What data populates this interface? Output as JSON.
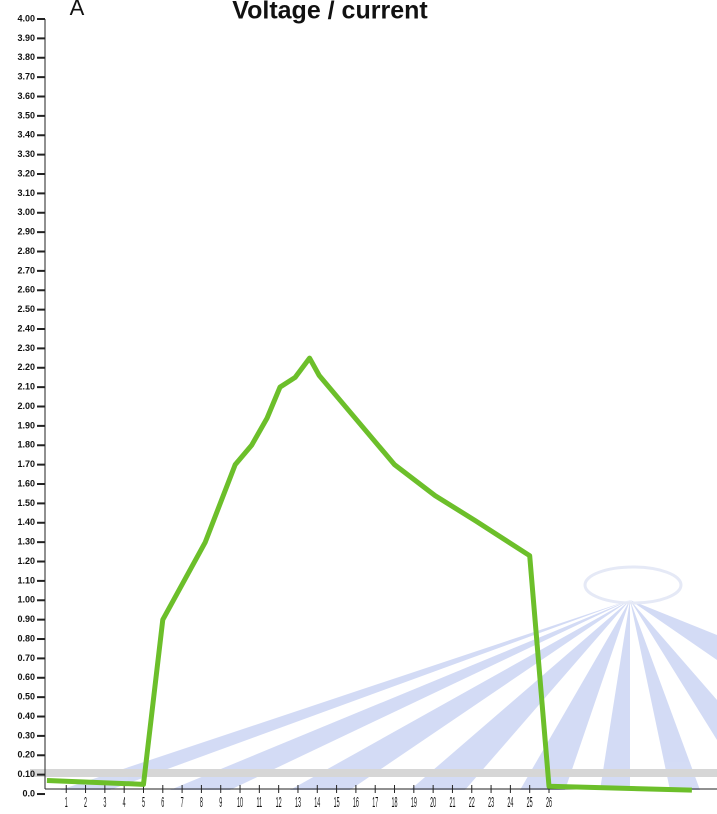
{
  "chart_data": {
    "type": "line",
    "title": "Voltage / current",
    "y_label": "A",
    "x": [
      0,
      5,
      6,
      8.2,
      9.75,
      10.6,
      11.4,
      12.07,
      12.85,
      13.6,
      14.1,
      15.2,
      18,
      20.1,
      22.2,
      25,
      26,
      33.4
    ],
    "series": [
      {
        "name": "Voltage / current",
        "color": "#6cbf2a",
        "values": [
          0.07,
          0.05,
          0.9,
          1.3,
          1.7,
          1.8,
          1.94,
          2.1,
          2.15,
          2.25,
          2.16,
          2.03,
          1.7,
          1.54,
          1.41,
          1.23,
          0.04,
          0.02
        ]
      }
    ],
    "xlim": [
      -0.1,
      34.7
    ],
    "xticks": [
      1,
      2,
      3,
      4,
      5,
      6,
      7,
      8,
      9,
      10,
      11,
      12,
      13,
      14,
      15,
      16,
      17,
      18,
      19,
      20,
      21,
      22,
      23,
      24,
      25,
      26
    ],
    "ylim": [
      -0.1,
      4.0
    ],
    "yticks": [
      {
        "value": 0,
        "label": "0.0"
      },
      {
        "value": 0.1,
        "label": "0.10"
      },
      {
        "value": 0.2,
        "label": "0.20"
      },
      {
        "value": 0.3,
        "label": "0.30"
      },
      {
        "value": 0.4,
        "label": "0.40"
      },
      {
        "value": 0.5,
        "label": "0.50"
      },
      {
        "value": 0.6,
        "label": "0.60"
      },
      {
        "value": 0.7,
        "label": "0.70"
      },
      {
        "value": 0.8,
        "label": "0.80"
      },
      {
        "value": 0.9,
        "label": "0.90"
      },
      {
        "value": 1.0,
        "label": "1.00"
      },
      {
        "value": 1.1,
        "label": "1.10"
      },
      {
        "value": 1.2,
        "label": "1.20"
      },
      {
        "value": 1.3,
        "label": "1.30"
      },
      {
        "value": 1.4,
        "label": "1.40"
      },
      {
        "value": 1.5,
        "label": "1.50"
      },
      {
        "value": 1.6,
        "label": "1.60"
      },
      {
        "value": 1.7,
        "label": "1.70"
      },
      {
        "value": 1.8,
        "label": "1.80"
      },
      {
        "value": 1.9,
        "label": "1.90"
      },
      {
        "value": 2.0,
        "label": "2.00"
      },
      {
        "value": 2.1,
        "label": "2.10"
      },
      {
        "value": 2.2,
        "label": "2.20"
      },
      {
        "value": 2.3,
        "label": "2.30"
      },
      {
        "value": 2.4,
        "label": "2.40"
      },
      {
        "value": 2.5,
        "label": "2.50"
      },
      {
        "value": 2.6,
        "label": "2.60"
      },
      {
        "value": 2.7,
        "label": "2.70"
      },
      {
        "value": 2.8,
        "label": "2.80"
      },
      {
        "value": 2.9,
        "label": "2.90"
      },
      {
        "value": 3.0,
        "label": "3.00"
      },
      {
        "value": 3.1,
        "label": "3.10"
      },
      {
        "value": 3.2,
        "label": "3.20"
      },
      {
        "value": 3.3,
        "label": "3.30"
      },
      {
        "value": 3.4,
        "label": "3.40"
      },
      {
        "value": 3.5,
        "label": "3.50"
      },
      {
        "value": 3.6,
        "label": "3.60"
      },
      {
        "value": 3.7,
        "label": "3.70"
      },
      {
        "value": 3.8,
        "label": "3.80"
      },
      {
        "value": 3.9,
        "label": "3.90"
      },
      {
        "value": 4.0,
        "label": "4.00"
      }
    ]
  }
}
